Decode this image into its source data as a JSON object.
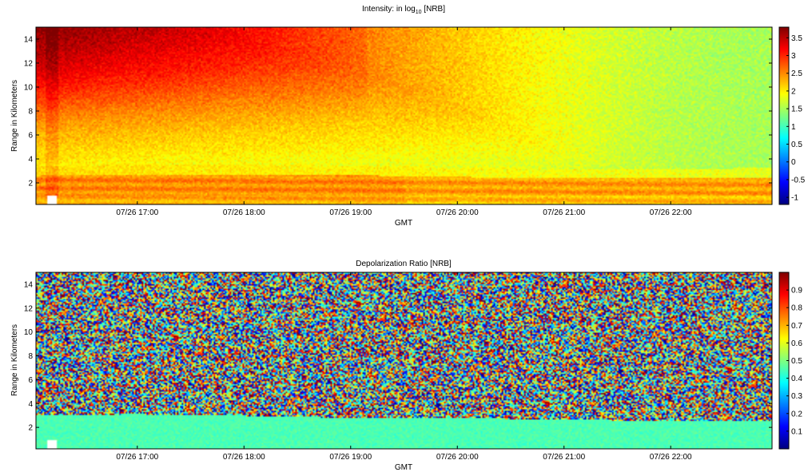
{
  "chart_data": [
    {
      "type": "heatmap",
      "title_main": "Intensity: in log",
      "title_sub": "10",
      "title_end": " [NRB]",
      "xlabel": "GMT",
      "ylabel": "Range in Kilometers",
      "x_ticks": [
        "07/26 17:00",
        "07/26 18:00",
        "07/26 19:00",
        "07/26 20:00",
        "07/26 21:00",
        "07/26 22:00"
      ],
      "x_tick_hours": [
        17,
        18,
        19,
        20,
        21,
        22
      ],
      "xlim_hours": [
        16.05,
        22.95
      ],
      "y_ticks": [
        2,
        4,
        6,
        8,
        10,
        12,
        14
      ],
      "ylim": [
        0.2,
        15
      ],
      "colorbar_ticks": [
        "3.5",
        "3",
        "2.5",
        "2",
        "1.5",
        "1",
        "0.5",
        "0",
        "-0.5",
        "-1"
      ],
      "colorbar_values": [
        3.5,
        3,
        2.5,
        2,
        1.5,
        1,
        0.5,
        0,
        -0.5,
        -1
      ],
      "clim": [
        -1.2,
        3.8
      ],
      "colormap": "jet",
      "description_features": {
        "boundary_layer_top_km": 2.6,
        "high_range_value_early": 3.3,
        "high_range_value_late": 1.5,
        "boundary_layer_value": 2.5
      }
    },
    {
      "type": "heatmap",
      "title_main": "Depolarization Ratio [NRB]",
      "xlabel": "GMT",
      "ylabel": "Range in Kilometers",
      "x_ticks": [
        "07/26 17:00",
        "07/26 18:00",
        "07/26 19:00",
        "07/26 20:00",
        "07/26 21:00",
        "07/26 22:00"
      ],
      "x_tick_hours": [
        17,
        18,
        19,
        20,
        21,
        22
      ],
      "xlim_hours": [
        16.05,
        22.95
      ],
      "y_ticks": [
        2,
        4,
        6,
        8,
        10,
        12,
        14
      ],
      "ylim": [
        0.2,
        15
      ],
      "colorbar_ticks": [
        "0.9",
        "0.8",
        "0.7",
        "0.6",
        "0.5",
        "0.4",
        "0.3",
        "0.2",
        "0.1"
      ],
      "colorbar_values": [
        0.9,
        0.8,
        0.7,
        0.6,
        0.5,
        0.4,
        0.3,
        0.2,
        0.1
      ],
      "clim": [
        0,
        1
      ],
      "colormap": "jet",
      "description_features": {
        "boundary_layer_top_km": 2.6,
        "boundary_layer_value": 0.45,
        "noise_above": "random 0-1"
      }
    }
  ]
}
